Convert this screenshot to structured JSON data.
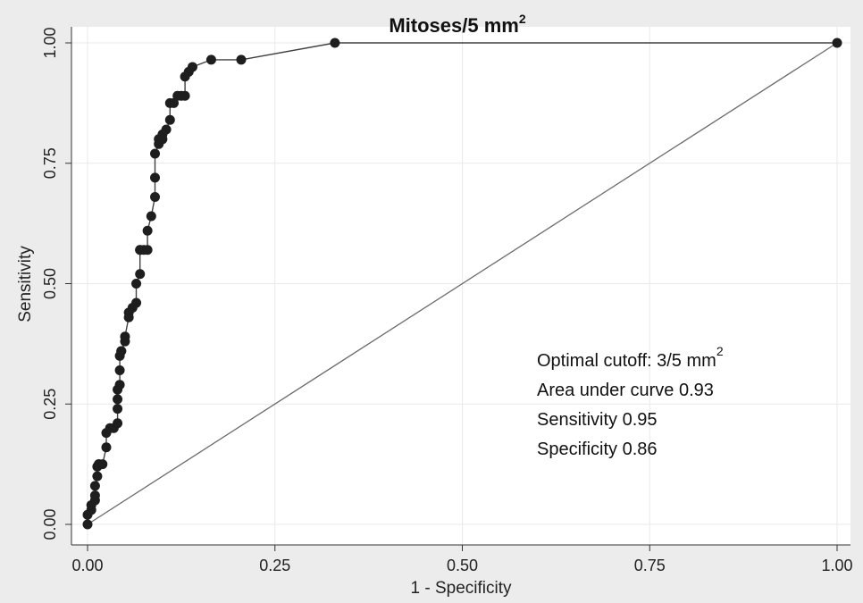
{
  "chart_data": {
    "type": "line",
    "title": "Mitoses/5 mm",
    "title_superscript": "2",
    "xlabel": "1 - Specificity",
    "ylabel": "Sensitivity",
    "xlim": [
      0,
      1
    ],
    "ylim": [
      0,
      1
    ],
    "x_ticks": [
      "0.00",
      "0.25",
      "0.50",
      "0.75",
      "1.00"
    ],
    "y_ticks": [
      "0.00",
      "0.25",
      "0.50",
      "0.75",
      "1.00"
    ],
    "grid": true,
    "series": [
      {
        "x": [
          0.0,
          0.0,
          0.005,
          0.005,
          0.01,
          0.01,
          0.01,
          0.013,
          0.013,
          0.015,
          0.015,
          0.02,
          0.025,
          0.025,
          0.03,
          0.035,
          0.04,
          0.04,
          0.04,
          0.04,
          0.043,
          0.043,
          0.043,
          0.045,
          0.045,
          0.05,
          0.05,
          0.055,
          0.055,
          0.06,
          0.065,
          0.065,
          0.07,
          0.07,
          0.07,
          0.075,
          0.08,
          0.08,
          0.085,
          0.09,
          0.09,
          0.09,
          0.095,
          0.095,
          0.1,
          0.1,
          0.105,
          0.11,
          0.11,
          0.115,
          0.12,
          0.125,
          0.13,
          0.13,
          0.135,
          0.14,
          0.165,
          0.205,
          0.33,
          1.0
        ],
        "y": [
          0.0,
          0.02,
          0.03,
          0.04,
          0.05,
          0.06,
          0.08,
          0.1,
          0.12,
          0.125,
          0.125,
          0.125,
          0.16,
          0.19,
          0.2,
          0.2,
          0.21,
          0.24,
          0.26,
          0.28,
          0.29,
          0.32,
          0.35,
          0.36,
          0.36,
          0.38,
          0.39,
          0.43,
          0.44,
          0.45,
          0.46,
          0.5,
          0.52,
          0.57,
          0.57,
          0.57,
          0.57,
          0.61,
          0.64,
          0.68,
          0.72,
          0.77,
          0.79,
          0.8,
          0.8,
          0.81,
          0.82,
          0.84,
          0.875,
          0.875,
          0.89,
          0.89,
          0.89,
          0.93,
          0.94,
          0.95,
          0.965,
          0.965,
          1.0,
          1.0
        ]
      },
      {
        "x": [
          0,
          1
        ],
        "y": [
          0,
          1
        ]
      }
    ],
    "annotations": [
      {
        "text": "Optimal cutoff: 3/5 mm",
        "superscript": "2"
      },
      {
        "text": "Area under curve 0.93"
      },
      {
        "text": "Sensitivity 0.95"
      },
      {
        "text": "Specificity 0.86"
      }
    ],
    "colors": {
      "background": "#ececec",
      "plot_background": "#ffffff",
      "grid": "#eaeaea",
      "roc_line": "#404040",
      "marker": "#1e1e1e",
      "reference_line": "#6a6a6a"
    }
  }
}
